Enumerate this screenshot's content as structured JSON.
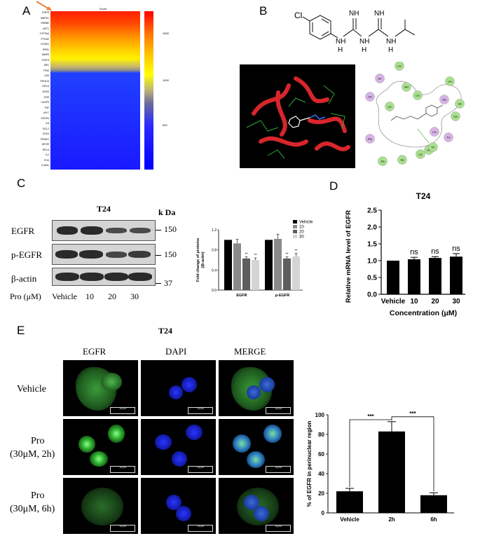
{
  "panels": {
    "a": "A",
    "b": "B",
    "c": "C",
    "d": "D",
    "e": "E"
  },
  "heatmap": {
    "header": "Score",
    "colorbar_ticks": [
      "1500",
      "1000",
      "500"
    ],
    "genes": [
      "EGFR",
      "MAPK1",
      "ERBB2",
      "AKT1",
      "CYP3A4",
      "PTGS2",
      "CCND1",
      "ESR1",
      "MMP9",
      "STAT3",
      "SRC",
      "TP53",
      "JUN",
      "PIK3CA",
      "HIF1A",
      "NOS3",
      "KDR",
      "CASP3",
      "TNF",
      "MYC",
      "VEGFA",
      "IL6",
      "BCL2",
      "CDK4",
      "PPARG",
      "MTOR",
      "RELA",
      "IL2",
      "FOS",
      "ICAM1"
    ]
  },
  "structure": {
    "cl": "Cl",
    "nh": "NH",
    "h": "H"
  },
  "interaction_residues": [
    "Leu",
    "Ser",
    "Leu",
    "Gln",
    "Met",
    "Leu",
    "Lys",
    "Ala",
    "Val",
    "Leu",
    "Thr",
    "Asp",
    "Glu",
    "Thr",
    "Cys",
    "Lys",
    "Ala",
    "Gly"
  ],
  "western": {
    "title": "T24",
    "kda": "k Da",
    "rows": [
      "EGFR",
      "p-EGFR",
      "β-actin"
    ],
    "markers": [
      "150",
      "150",
      "37"
    ],
    "treatment_label": "Pro (μM)",
    "lanes": [
      "Vehicle",
      "10",
      "20",
      "30"
    ]
  },
  "chart_c": {
    "type": "bar",
    "ylabel": "Fold change of proteins\n(/β-actin)",
    "categories": [
      "EGFR",
      "p-EGFR"
    ],
    "series": [
      {
        "name": "Vehicle",
        "values": [
          1.0,
          1.0
        ],
        "errors": [
          0,
          0
        ],
        "color": "#000000"
      },
      {
        "name": "10",
        "values": [
          0.93,
          1.02
        ],
        "errors": [
          0.08,
          0.09
        ],
        "color": "#8a8a8a"
      },
      {
        "name": "20",
        "values": [
          0.63,
          0.63
        ],
        "errors": [
          0.03,
          0.03
        ],
        "color": "#5e5e5e"
      },
      {
        "name": "30",
        "values": [
          0.6,
          0.67
        ],
        "errors": [
          0.04,
          0.06
        ],
        "color": "#d4d4d4"
      }
    ],
    "sig": [
      [
        "",
        "",
        "**",
        "**"
      ],
      [
        "",
        "",
        "**",
        "**"
      ]
    ],
    "ylim": [
      0,
      1.2
    ]
  },
  "chart_data": [
    {
      "type": "bar",
      "title": "T24",
      "xlabel": "Concentration (μM)",
      "ylabel": "Relative mRNA level of EGFR",
      "categories": [
        "Vehicle",
        "10",
        "20",
        "30"
      ],
      "values": [
        1.0,
        1.04,
        1.08,
        1.12
      ],
      "errors": [
        0,
        0.06,
        0.04,
        0.09
      ],
      "annotations": [
        "",
        "ns",
        "ns",
        "ns"
      ],
      "yticks": [
        "0.0",
        "0.5",
        "1.0",
        "1.5",
        "2.0",
        "2.5"
      ],
      "ylim": [
        0,
        2.5
      ]
    },
    {
      "type": "bar",
      "ylabel": "% of EGFR in perinuclear region",
      "categories": [
        "Vehicle",
        "2h",
        "6h"
      ],
      "values": [
        22,
        83,
        18
      ],
      "errors": [
        3,
        10,
        2.5
      ],
      "comparisons": [
        {
          "from": "Vehicle",
          "to": "2h",
          "label": "***"
        },
        {
          "from": "2h",
          "to": "6h",
          "label": "***"
        }
      ],
      "yticks": [
        "0",
        "20",
        "40",
        "60",
        "80",
        "100"
      ],
      "ylim": [
        0,
        100
      ]
    }
  ],
  "micro": {
    "title": "T24",
    "columns": [
      "EGFR",
      "DAPI",
      "MERGE"
    ],
    "rows": [
      {
        "label_1": "Vehicle",
        "label_2": ""
      },
      {
        "label_1": "Pro",
        "label_2": "(30μM, 2h)"
      },
      {
        "label_1": "Pro",
        "label_2": "(30μM, 6h)"
      }
    ],
    "scale_text": "10μM"
  }
}
